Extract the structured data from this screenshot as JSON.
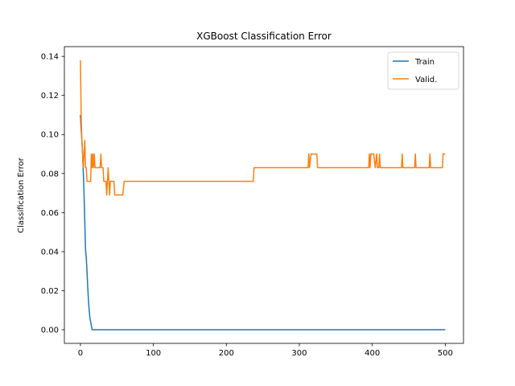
{
  "chart_data": {
    "type": "line",
    "title": "XGBoost Classification Error",
    "xlabel": "",
    "ylabel": "Classification Error",
    "xlim": [
      -22,
      525
    ],
    "ylim": [
      -0.007,
      0.145
    ],
    "xticks": [
      0,
      100,
      200,
      300,
      400,
      500
    ],
    "yticks": [
      0.0,
      0.02,
      0.04,
      0.06,
      0.08,
      0.1,
      0.12,
      0.14
    ],
    "xtick_labels": [
      "0",
      "100",
      "200",
      "300",
      "400",
      "500"
    ],
    "ytick_labels": [
      "0.00",
      "0.02",
      "0.04",
      "0.06",
      "0.08",
      "0.10",
      "0.12",
      "0.14"
    ],
    "grid": false,
    "legend_position": "top-right",
    "series": [
      {
        "name": "Train",
        "color": "#1f77b4",
        "x": [
          0,
          1,
          2,
          3,
          4,
          5,
          6,
          7,
          8,
          9,
          10,
          11,
          12,
          13,
          14,
          15,
          16,
          17,
          18,
          20,
          30,
          50,
          100,
          200,
          300,
          400,
          500
        ],
        "y": [
          0.11,
          0.103,
          0.097,
          0.09,
          0.08,
          0.069,
          0.055,
          0.041,
          0.037,
          0.03,
          0.022,
          0.015,
          0.01,
          0.006,
          0.004,
          0.002,
          0.0,
          0.0,
          0.0,
          0.0,
          0.0,
          0.0,
          0.0,
          0.0,
          0.0,
          0.0,
          0.0
        ]
      },
      {
        "name": "Valid.",
        "color": "#ff7f0e",
        "x": [
          0,
          1,
          2,
          3,
          4,
          5,
          6,
          7,
          8,
          9,
          10,
          11,
          12,
          13,
          14,
          15,
          16,
          17,
          18,
          19,
          20,
          21,
          22,
          23,
          24,
          25,
          26,
          27,
          28,
          29,
          30,
          31,
          32,
          33,
          34,
          35,
          36,
          37,
          38,
          39,
          40,
          41,
          42,
          43,
          44,
          45,
          46,
          47,
          48,
          49,
          50,
          52,
          54,
          56,
          58,
          60,
          62,
          100,
          150,
          200,
          237,
          238,
          240,
          280,
          312,
          313,
          314,
          316,
          318,
          320,
          324,
          325,
          326,
          330,
          360,
          395,
          396,
          397,
          398,
          400,
          402,
          404,
          406,
          407,
          408,
          409,
          410,
          411,
          412,
          440,
          441,
          442,
          443,
          444,
          458,
          459,
          460,
          461,
          478,
          479,
          480,
          481,
          495,
          496,
          497,
          499,
          500
        ],
        "y": [
          0.138,
          0.11,
          0.097,
          0.09,
          0.083,
          0.09,
          0.097,
          0.083,
          0.083,
          0.076,
          0.076,
          0.076,
          0.076,
          0.076,
          0.076,
          0.09,
          0.083,
          0.09,
          0.083,
          0.09,
          0.083,
          0.083,
          0.083,
          0.083,
          0.083,
          0.083,
          0.083,
          0.083,
          0.09,
          0.083,
          0.083,
          0.083,
          0.076,
          0.076,
          0.076,
          0.076,
          0.069,
          0.076,
          0.083,
          0.076,
          0.069,
          0.076,
          0.076,
          0.076,
          0.076,
          0.076,
          0.076,
          0.069,
          0.069,
          0.069,
          0.069,
          0.069,
          0.069,
          0.069,
          0.069,
          0.076,
          0.076,
          0.076,
          0.076,
          0.076,
          0.076,
          0.083,
          0.083,
          0.083,
          0.083,
          0.09,
          0.083,
          0.09,
          0.09,
          0.09,
          0.09,
          0.083,
          0.083,
          0.083,
          0.083,
          0.083,
          0.09,
          0.083,
          0.09,
          0.09,
          0.09,
          0.083,
          0.09,
          0.083,
          0.083,
          0.083,
          0.09,
          0.083,
          0.083,
          0.083,
          0.09,
          0.083,
          0.083,
          0.083,
          0.083,
          0.09,
          0.083,
          0.083,
          0.083,
          0.09,
          0.083,
          0.083,
          0.083,
          0.083,
          0.09,
          0.09,
          0.09
        ]
      }
    ]
  }
}
